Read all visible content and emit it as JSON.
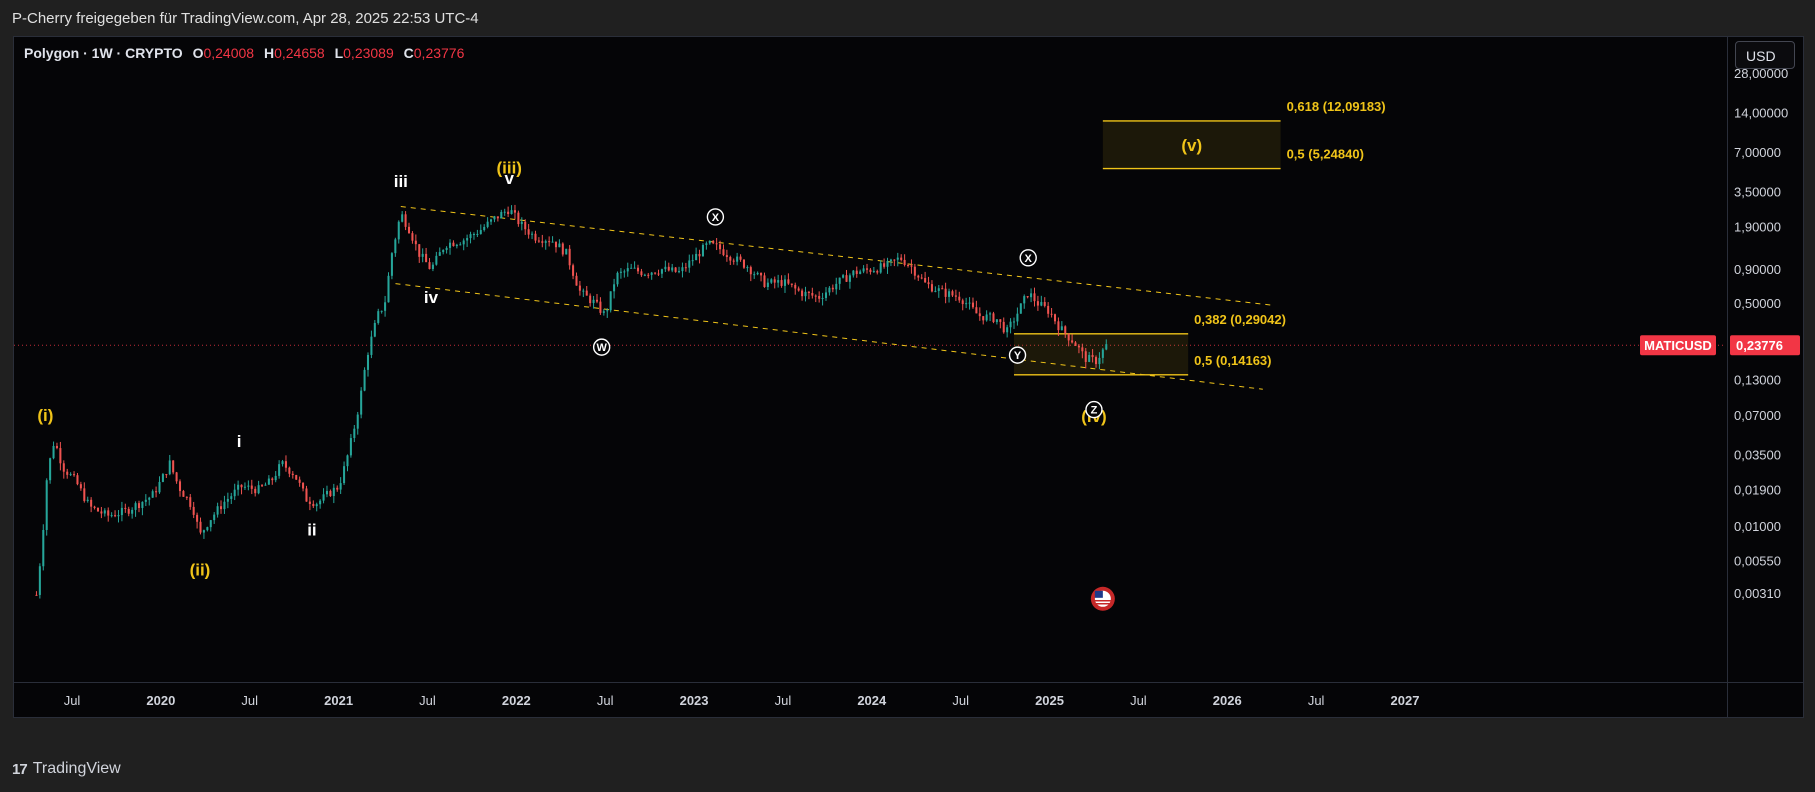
{
  "header": {
    "attribution": "P-Cherry freigegeben für TradingView.com, Apr 28, 2025 22:53 UTC-4"
  },
  "legend": {
    "symbol": "Polygon · 1W · CRYPTO",
    "open_label": "O",
    "open": "0,24008",
    "high_label": "H",
    "high": "0,24658",
    "low_label": "L",
    "low": "0,23089",
    "close_label": "C",
    "close": "0,23776"
  },
  "currency_button": "USD",
  "footer": {
    "brand_glyph": "17",
    "brand": "TradingView"
  },
  "colors": {
    "up": "#26a69a",
    "down": "#ef5350",
    "fib": "#f0c419",
    "price_tag": "#f23645",
    "bg": "#050507"
  },
  "chart_data": {
    "type": "candlestick",
    "scale": "log",
    "interval": "1W",
    "y_ticks": [
      {
        "v": 28.0,
        "label": "28,00000"
      },
      {
        "v": 14.0,
        "label": "14,00000"
      },
      {
        "v": 7.0,
        "label": "7,00000"
      },
      {
        "v": 3.5,
        "label": "3,50000"
      },
      {
        "v": 1.9,
        "label": "1,90000"
      },
      {
        "v": 0.9,
        "label": "0,90000"
      },
      {
        "v": 0.5,
        "label": "0,50000"
      },
      {
        "v": 0.13,
        "label": "0,13000"
      },
      {
        "v": 0.07,
        "label": "0,07000"
      },
      {
        "v": 0.035,
        "label": "0,03500"
      },
      {
        "v": 0.019,
        "label": "0,01900"
      },
      {
        "v": 0.01,
        "label": "0,01000"
      },
      {
        "v": 0.0055,
        "label": "0,00550"
      },
      {
        "v": 0.0031,
        "label": "0,00310"
      }
    ],
    "x_ticks": [
      {
        "t": 2019.5,
        "label": "Jul"
      },
      {
        "t": 2020.0,
        "label": "2020"
      },
      {
        "t": 2020.5,
        "label": "Jul"
      },
      {
        "t": 2021.0,
        "label": "2021"
      },
      {
        "t": 2021.5,
        "label": "Jul"
      },
      {
        "t": 2022.0,
        "label": "2022"
      },
      {
        "t": 2022.5,
        "label": "Jul"
      },
      {
        "t": 2023.0,
        "label": "2023"
      },
      {
        "t": 2023.5,
        "label": "Jul"
      },
      {
        "t": 2024.0,
        "label": "2024"
      },
      {
        "t": 2024.5,
        "label": "Jul"
      },
      {
        "t": 2025.0,
        "label": "2025"
      },
      {
        "t": 2025.5,
        "label": "Jul"
      },
      {
        "t": 2026.0,
        "label": "2026"
      },
      {
        "t": 2026.5,
        "label": "Jul"
      },
      {
        "t": 2027.0,
        "label": "2027"
      }
    ],
    "x_range": [
      2019.27,
      2027.9
    ],
    "price_path": [
      [
        2019.3,
        0.003
      ],
      [
        2019.33,
        0.007
      ],
      [
        2019.36,
        0.025
      ],
      [
        2019.4,
        0.045
      ],
      [
        2019.45,
        0.028
      ],
      [
        2019.52,
        0.022
      ],
      [
        2019.6,
        0.014
      ],
      [
        2019.7,
        0.012
      ],
      [
        2019.8,
        0.013
      ],
      [
        2019.88,
        0.015
      ],
      [
        2019.95,
        0.017
      ],
      [
        2020.0,
        0.022
      ],
      [
        2020.05,
        0.03
      ],
      [
        2020.1,
        0.02
      ],
      [
        2020.18,
        0.014
      ],
      [
        2020.22,
        0.0085
      ],
      [
        2020.27,
        0.011
      ],
      [
        2020.35,
        0.015
      ],
      [
        2020.45,
        0.02
      ],
      [
        2020.55,
        0.019
      ],
      [
        2020.62,
        0.022
      ],
      [
        2020.68,
        0.03
      ],
      [
        2020.75,
        0.025
      ],
      [
        2020.82,
        0.016
      ],
      [
        2020.88,
        0.015
      ],
      [
        2020.95,
        0.018
      ],
      [
        2021.0,
        0.02
      ],
      [
        2021.04,
        0.03
      ],
      [
        2021.08,
        0.05
      ],
      [
        2021.12,
        0.09
      ],
      [
        2021.16,
        0.2
      ],
      [
        2021.22,
        0.4
      ],
      [
        2021.26,
        0.5
      ],
      [
        2021.3,
        1.2
      ],
      [
        2021.35,
        2.4
      ],
      [
        2021.4,
        1.8
      ],
      [
        2021.45,
        1.2
      ],
      [
        2021.52,
        0.9
      ],
      [
        2021.6,
        1.4
      ],
      [
        2021.7,
        1.5
      ],
      [
        2021.8,
        1.8
      ],
      [
        2021.88,
        2.2
      ],
      [
        2021.96,
        2.6
      ],
      [
        2022.02,
        2.0
      ],
      [
        2022.1,
        1.6
      ],
      [
        2022.2,
        1.5
      ],
      [
        2022.28,
        1.2
      ],
      [
        2022.36,
        0.6
      ],
      [
        2022.44,
        0.5
      ],
      [
        2022.5,
        0.4
      ],
      [
        2022.56,
        0.8
      ],
      [
        2022.64,
        0.9
      ],
      [
        2022.72,
        0.85
      ],
      [
        2022.82,
        0.9
      ],
      [
        2022.92,
        0.85
      ],
      [
        2023.0,
        1.1
      ],
      [
        2023.08,
        1.4
      ],
      [
        2023.14,
        1.3
      ],
      [
        2023.22,
        1.1
      ],
      [
        2023.3,
        0.95
      ],
      [
        2023.4,
        0.7
      ],
      [
        2023.5,
        0.72
      ],
      [
        2023.6,
        0.6
      ],
      [
        2023.7,
        0.55
      ],
      [
        2023.8,
        0.7
      ],
      [
        2023.9,
        0.85
      ],
      [
        2024.0,
        0.9
      ],
      [
        2024.08,
        0.95
      ],
      [
        2024.16,
        1.1
      ],
      [
        2024.22,
        0.95
      ],
      [
        2024.3,
        0.7
      ],
      [
        2024.4,
        0.6
      ],
      [
        2024.5,
        0.55
      ],
      [
        2024.6,
        0.4
      ],
      [
        2024.7,
        0.38
      ],
      [
        2024.76,
        0.3
      ],
      [
        2024.82,
        0.42
      ],
      [
        2024.88,
        0.6
      ],
      [
        2024.93,
        0.5
      ],
      [
        2025.0,
        0.43
      ],
      [
        2025.06,
        0.32
      ],
      [
        2025.14,
        0.25
      ],
      [
        2025.2,
        0.19
      ],
      [
        2025.26,
        0.18
      ],
      [
        2025.32,
        0.237
      ]
    ],
    "channel_lines": [
      {
        "name": "upper",
        "from": [
          2021.35,
          2.7
        ],
        "to": [
          2026.25,
          0.48
        ]
      },
      {
        "name": "lower",
        "from": [
          2021.32,
          0.7
        ],
        "to": [
          2026.2,
          0.11
        ]
      }
    ],
    "fib_zones": [
      {
        "id": "target",
        "from_t": 2025.3,
        "to_t": 2026.3,
        "top": 12.09183,
        "bottom": 5.2484,
        "label": "(v)",
        "top_label": "0,618 (12,09183)",
        "bottom_label": "0,5 (5,24840)"
      },
      {
        "id": "support",
        "from_t": 2024.8,
        "to_t": 2025.78,
        "top": 0.29042,
        "bottom": 0.14163,
        "top_label": "0,382 (0,29042)",
        "bottom_label": "0,5 (0,14163)"
      }
    ],
    "current_price": {
      "value": 0.23776,
      "symbol_label": "MATICUSD",
      "price_label": "0,23776"
    },
    "wave_labels": [
      {
        "text": "(i)",
        "t": 2019.35,
        "v": 0.063,
        "color": "#f0c419"
      },
      {
        "text": "(ii)",
        "t": 2020.22,
        "v": 0.0042,
        "color": "#f0c419"
      },
      {
        "text": "(iii)",
        "t": 2021.96,
        "v": 4.8,
        "color": "#f0c419"
      },
      {
        "text": "(iv)",
        "t": 2025.25,
        "v": 0.062,
        "color": "#f0c419"
      },
      {
        "text": "i",
        "t": 2020.44,
        "v": 0.04,
        "color": "#ffffff"
      },
      {
        "text": "ii",
        "t": 2020.85,
        "v": 0.0085,
        "color": "#ffffff"
      },
      {
        "text": "iii",
        "t": 2021.35,
        "v": 3.8,
        "color": "#ffffff"
      },
      {
        "text": "iv",
        "t": 2021.52,
        "v": 0.5,
        "color": "#ffffff"
      },
      {
        "text": "v",
        "t": 2021.96,
        "v": 4.0,
        "color": "#ffffff"
      }
    ],
    "circled_labels": [
      {
        "text": "W",
        "t": 2022.48,
        "v": 0.23
      },
      {
        "text": "X",
        "t": 2023.12,
        "v": 2.25
      },
      {
        "text": "X",
        "t": 2024.88,
        "v": 1.1
      },
      {
        "text": "Y",
        "t": 2024.82,
        "v": 0.2
      },
      {
        "text": "Z",
        "t": 2025.25,
        "v": 0.077
      }
    ],
    "flag_icon": {
      "t": 2025.3,
      "v": 0.0028
    }
  }
}
